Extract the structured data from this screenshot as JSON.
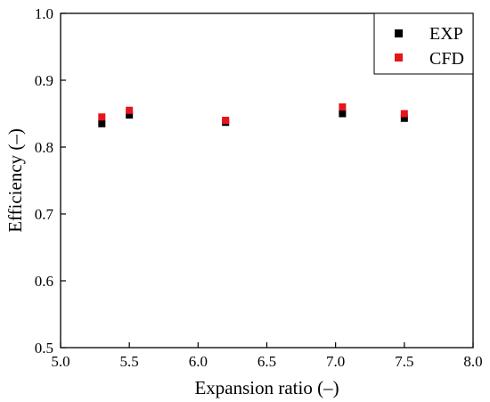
{
  "chart_data": {
    "type": "scatter",
    "title": "",
    "xlabel": "Expansion ratio (–)",
    "ylabel": "Efficiency (–)",
    "xlim": [
      5.0,
      8.0
    ],
    "ylim": [
      0.5,
      1.0
    ],
    "xticks": [
      "5.0",
      "5.5",
      "6.0",
      "6.5",
      "7.0",
      "7.5",
      "8.0"
    ],
    "yticks": [
      "0.5",
      "0.6",
      "0.7",
      "0.8",
      "0.9",
      "1.0"
    ],
    "grid": false,
    "legend_position": "top-right",
    "series": [
      {
        "name": "EXP",
        "color": "#000000",
        "marker": "square",
        "x": [
          5.3,
          5.5,
          6.2,
          7.05,
          7.5
        ],
        "y": [
          0.835,
          0.848,
          0.837,
          0.85,
          0.843
        ]
      },
      {
        "name": "CFD",
        "color": "#e8141c",
        "marker": "square",
        "x": [
          5.3,
          5.5,
          6.2,
          7.05,
          7.5
        ],
        "y": [
          0.845,
          0.855,
          0.84,
          0.86,
          0.85
        ]
      }
    ]
  }
}
